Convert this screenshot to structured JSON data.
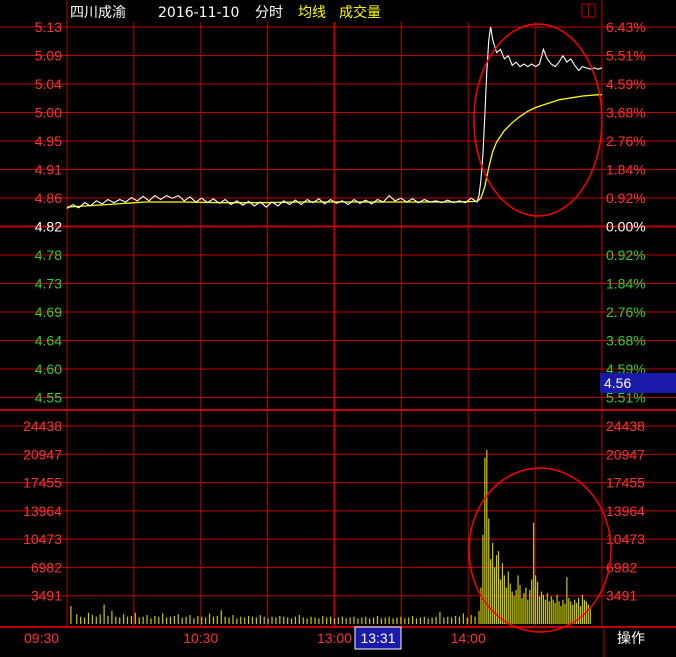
{
  "header": {
    "stock_name": "四川成渝",
    "date": "2016-11-10",
    "mode": "分时",
    "avg_label": "均线",
    "vol_label": "成交量"
  },
  "colors": {
    "background": "#000000",
    "grid": "#c00000",
    "up": "#ff3232",
    "down": "#33cc33",
    "flat": "#ffffff",
    "price_line": "#ffffff",
    "avg_line": "#ffff00",
    "volume": "#cccc00",
    "annotation": "#ff0000",
    "marker_bg": "#1a1aa8"
  },
  "chart_data": {
    "type": "line",
    "prev_close": 4.82,
    "price_axis": {
      "ticks": [
        5.13,
        5.09,
        5.04,
        5.0,
        4.95,
        4.91,
        4.86,
        4.82,
        4.78,
        4.73,
        4.69,
        4.64,
        4.6,
        4.55
      ],
      "pct_labels_up": [
        "6.43%",
        "5.51%",
        "4.59%",
        "3.68%",
        "2.76%",
        "1.84%",
        "0.92%"
      ],
      "pct_zero": "0.00%",
      "pct_labels_down": [
        "0.92%",
        "1.84%",
        "2.76%",
        "3.68%",
        "4.59%",
        "5.51%"
      ],
      "ylim": [
        4.535,
        5.13
      ]
    },
    "volume_axis": {
      "ticks": [
        24438,
        20947,
        17455,
        13964,
        10473,
        6982,
        3491
      ],
      "ylim": [
        0,
        24438
      ]
    },
    "time_labels": [
      "09:30",
      "10:30",
      "13:00",
      "14:00"
    ],
    "current_time": "13:31",
    "current_price": "4.56",
    "price_series": [
      [
        0,
        4.846
      ],
      [
        3,
        4.852
      ],
      [
        6,
        4.847
      ],
      [
        9,
        4.855
      ],
      [
        12,
        4.85
      ],
      [
        15,
        4.858
      ],
      [
        18,
        4.853
      ],
      [
        21,
        4.86
      ],
      [
        24,
        4.855
      ],
      [
        27,
        4.86
      ],
      [
        30,
        4.856
      ],
      [
        33,
        4.863
      ],
      [
        36,
        4.858
      ],
      [
        39,
        4.865
      ],
      [
        42,
        4.858
      ],
      [
        45,
        4.866
      ],
      [
        48,
        4.86
      ],
      [
        51,
        4.866
      ],
      [
        54,
        4.862
      ],
      [
        57,
        4.866
      ],
      [
        60,
        4.858
      ],
      [
        63,
        4.864
      ],
      [
        66,
        4.856
      ],
      [
        69,
        4.862
      ],
      [
        72,
        4.855
      ],
      [
        75,
        4.861
      ],
      [
        78,
        4.854
      ],
      [
        81,
        4.86
      ],
      [
        84,
        4.852
      ],
      [
        87,
        4.858
      ],
      [
        90,
        4.851
      ],
      [
        93,
        4.857
      ],
      [
        96,
        4.85
      ],
      [
        99,
        4.856
      ],
      [
        102,
        4.848
      ],
      [
        105,
        4.856
      ],
      [
        108,
        4.85
      ],
      [
        111,
        4.858
      ],
      [
        114,
        4.852
      ],
      [
        117,
        4.859
      ],
      [
        120,
        4.852
      ],
      [
        123,
        4.86
      ],
      [
        126,
        4.855
      ],
      [
        129,
        4.861
      ],
      [
        132,
        4.853
      ],
      [
        135,
        4.86
      ],
      [
        138,
        4.854
      ],
      [
        141,
        4.858
      ],
      [
        144,
        4.852
      ],
      [
        147,
        4.86
      ],
      [
        150,
        4.854
      ],
      [
        153,
        4.859
      ],
      [
        156,
        4.853
      ],
      [
        159,
        4.86
      ],
      [
        162,
        4.856
      ],
      [
        165,
        4.866
      ],
      [
        168,
        4.858
      ],
      [
        171,
        4.862
      ],
      [
        174,
        4.856
      ],
      [
        177,
        4.861
      ],
      [
        180,
        4.855
      ],
      [
        183,
        4.86
      ],
      [
        186,
        4.856
      ],
      [
        189,
        4.858
      ],
      [
        192,
        4.855
      ],
      [
        195,
        4.859
      ],
      [
        198,
        4.855
      ],
      [
        201,
        4.858
      ],
      [
        204,
        4.855
      ],
      [
        207,
        4.862
      ],
      [
        210,
        4.856
      ],
      [
        211,
        4.866
      ],
      [
        212,
        4.89
      ],
      [
        213,
        4.93
      ],
      [
        214,
        4.99
      ],
      [
        215,
        5.06
      ],
      [
        216,
        5.11
      ],
      [
        217,
        5.13
      ],
      [
        218,
        5.11
      ],
      [
        220,
        5.09
      ],
      [
        222,
        5.095
      ],
      [
        224,
        5.08
      ],
      [
        226,
        5.085
      ],
      [
        228,
        5.07
      ],
      [
        230,
        5.075
      ],
      [
        232,
        5.068
      ],
      [
        234,
        5.072
      ],
      [
        236,
        5.068
      ],
      [
        238,
        5.072
      ],
      [
        240,
        5.068
      ],
      [
        242,
        5.072
      ],
      [
        244,
        5.095
      ],
      [
        246,
        5.08
      ],
      [
        248,
        5.072
      ],
      [
        250,
        5.068
      ],
      [
        252,
        5.075
      ],
      [
        254,
        5.085
      ],
      [
        256,
        5.075
      ],
      [
        258,
        5.08
      ],
      [
        260,
        5.07
      ],
      [
        262,
        5.062
      ],
      [
        264,
        5.068
      ],
      [
        266,
        5.066
      ],
      [
        268,
        5.064
      ],
      [
        270,
        5.066
      ],
      [
        272,
        5.064
      ],
      [
        274,
        5.066
      ]
    ],
    "avg_series": [
      [
        0,
        4.848
      ],
      [
        20,
        4.852
      ],
      [
        40,
        4.856
      ],
      [
        60,
        4.856
      ],
      [
        80,
        4.855
      ],
      [
        100,
        4.855
      ],
      [
        120,
        4.856
      ],
      [
        140,
        4.856
      ],
      [
        160,
        4.856
      ],
      [
        180,
        4.856
      ],
      [
        200,
        4.856
      ],
      [
        210,
        4.857
      ],
      [
        212,
        4.862
      ],
      [
        214,
        4.88
      ],
      [
        216,
        4.91
      ],
      [
        218,
        4.935
      ],
      [
        220,
        4.95
      ],
      [
        224,
        4.968
      ],
      [
        228,
        4.98
      ],
      [
        232,
        4.99
      ],
      [
        236,
        4.998
      ],
      [
        240,
        5.004
      ],
      [
        244,
        5.008
      ],
      [
        248,
        5.012
      ],
      [
        252,
        5.016
      ],
      [
        256,
        5.018
      ],
      [
        260,
        5.02
      ],
      [
        264,
        5.022
      ],
      [
        268,
        5.023
      ],
      [
        272,
        5.024
      ],
      [
        274,
        5.024
      ]
    ],
    "volume_series": [
      [
        2,
        2200
      ],
      [
        5,
        1200
      ],
      [
        7,
        900
      ],
      [
        9,
        800
      ],
      [
        11,
        1400
      ],
      [
        13,
        1100
      ],
      [
        15,
        900
      ],
      [
        17,
        1200
      ],
      [
        19,
        2400
      ],
      [
        21,
        1000
      ],
      [
        23,
        1600
      ],
      [
        25,
        900
      ],
      [
        27,
        800
      ],
      [
        29,
        1200
      ],
      [
        31,
        900
      ],
      [
        33,
        1000
      ],
      [
        35,
        1400
      ],
      [
        37,
        800
      ],
      [
        39,
        900
      ],
      [
        41,
        1100
      ],
      [
        43,
        700
      ],
      [
        45,
        1000
      ],
      [
        47,
        900
      ],
      [
        49,
        1300
      ],
      [
        51,
        800
      ],
      [
        53,
        900
      ],
      [
        55,
        1000
      ],
      [
        57,
        1200
      ],
      [
        59,
        800
      ],
      [
        61,
        900
      ],
      [
        63,
        1100
      ],
      [
        65,
        700
      ],
      [
        67,
        1000
      ],
      [
        69,
        900
      ],
      [
        71,
        800
      ],
      [
        73,
        1300
      ],
      [
        75,
        900
      ],
      [
        77,
        1000
      ],
      [
        79,
        1700
      ],
      [
        81,
        900
      ],
      [
        83,
        800
      ],
      [
        85,
        1100
      ],
      [
        87,
        700
      ],
      [
        89,
        900
      ],
      [
        91,
        800
      ],
      [
        93,
        1000
      ],
      [
        95,
        900
      ],
      [
        97,
        800
      ],
      [
        99,
        1100
      ],
      [
        101,
        900
      ],
      [
        103,
        700
      ],
      [
        105,
        900
      ],
      [
        107,
        800
      ],
      [
        109,
        1000
      ],
      [
        111,
        900
      ],
      [
        113,
        800
      ],
      [
        115,
        700
      ],
      [
        117,
        900
      ],
      [
        119,
        1100
      ],
      [
        121,
        800
      ],
      [
        123,
        700
      ],
      [
        125,
        900
      ],
      [
        127,
        800
      ],
      [
        129,
        700
      ],
      [
        131,
        1000
      ],
      [
        133,
        800
      ],
      [
        135,
        900
      ],
      [
        137,
        700
      ],
      [
        139,
        800
      ],
      [
        141,
        900
      ],
      [
        143,
        700
      ],
      [
        145,
        800
      ],
      [
        147,
        900
      ],
      [
        149,
        700
      ],
      [
        151,
        800
      ],
      [
        153,
        900
      ],
      [
        155,
        700
      ],
      [
        157,
        800
      ],
      [
        159,
        1000
      ],
      [
        161,
        700
      ],
      [
        163,
        800
      ],
      [
        165,
        900
      ],
      [
        167,
        700
      ],
      [
        169,
        800
      ],
      [
        171,
        900
      ],
      [
        173,
        700
      ],
      [
        175,
        800
      ],
      [
        177,
        1000
      ],
      [
        179,
        700
      ],
      [
        181,
        800
      ],
      [
        183,
        900
      ],
      [
        185,
        700
      ],
      [
        187,
        800
      ],
      [
        189,
        900
      ],
      [
        191,
        1500
      ],
      [
        193,
        800
      ],
      [
        195,
        900
      ],
      [
        197,
        800
      ],
      [
        199,
        1000
      ],
      [
        201,
        900
      ],
      [
        203,
        1300
      ],
      [
        205,
        800
      ],
      [
        207,
        1100
      ],
      [
        209,
        900
      ],
      [
        211,
        1600
      ],
      [
        212,
        4500
      ],
      [
        213,
        11000
      ],
      [
        214,
        20500
      ],
      [
        215,
        21500
      ],
      [
        216,
        13000
      ],
      [
        217,
        8000
      ],
      [
        218,
        10000
      ],
      [
        219,
        7000
      ],
      [
        220,
        8500
      ],
      [
        221,
        9000
      ],
      [
        222,
        5500
      ],
      [
        223,
        7500
      ],
      [
        224,
        6000
      ],
      [
        225,
        4500
      ],
      [
        226,
        6500
      ],
      [
        227,
        5000
      ],
      [
        228,
        4000
      ],
      [
        229,
        3500
      ],
      [
        230,
        4200
      ],
      [
        231,
        6000
      ],
      [
        232,
        4800
      ],
      [
        233,
        3200
      ],
      [
        234,
        3800
      ],
      [
        235,
        4500
      ],
      [
        236,
        3000
      ],
      [
        237,
        4200
      ],
      [
        238,
        5500
      ],
      [
        239,
        12500
      ],
      [
        240,
        6000
      ],
      [
        241,
        5200
      ],
      [
        242,
        3400
      ],
      [
        243,
        4000
      ],
      [
        244,
        3600
      ],
      [
        245,
        3000
      ],
      [
        246,
        3800
      ],
      [
        247,
        2800
      ],
      [
        248,
        3400
      ],
      [
        249,
        3000
      ],
      [
        250,
        2600
      ],
      [
        251,
        3600
      ],
      [
        252,
        2800
      ],
      [
        253,
        2200
      ],
      [
        254,
        3000
      ],
      [
        255,
        2500
      ],
      [
        256,
        5800
      ],
      [
        257,
        3200
      ],
      [
        258,
        2800
      ],
      [
        259,
        2400
      ],
      [
        260,
        3000
      ],
      [
        261,
        2600
      ],
      [
        262,
        3200
      ],
      [
        263,
        2200
      ],
      [
        264,
        3600
      ],
      [
        265,
        3000
      ],
      [
        266,
        2800
      ],
      [
        267,
        2400
      ],
      [
        268,
        2000
      ]
    ]
  },
  "footer": {
    "menu_label": "操作"
  }
}
